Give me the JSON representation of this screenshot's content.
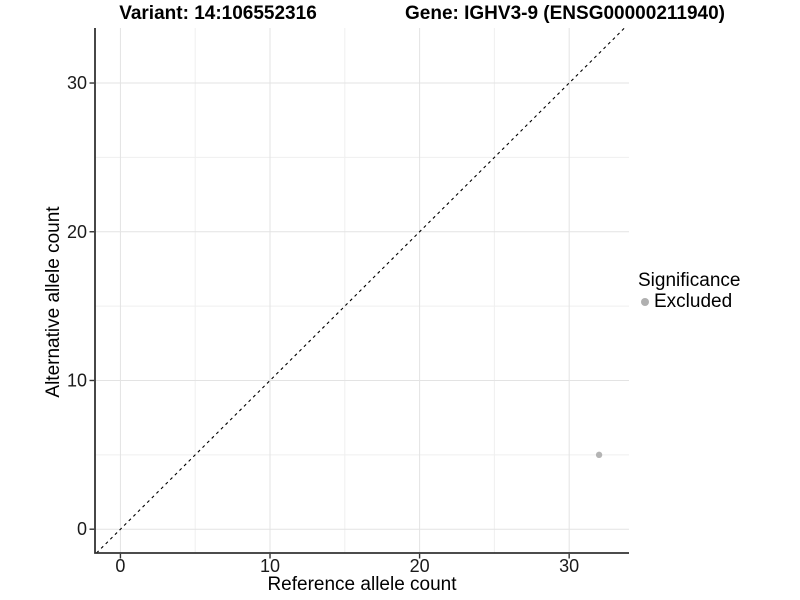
{
  "chart_data": {
    "type": "scatter",
    "title_left": "Variant: 14:106552316",
    "title_right": "Gene: IGHV3-9 (ENSG00000211940)",
    "xlabel": "Reference allele count",
    "ylabel": "Alternative allele count",
    "xticks": [
      0,
      10,
      20,
      30
    ],
    "yticks": [
      0,
      10,
      20,
      30
    ],
    "xlim": [
      -1.7,
      34
    ],
    "ylim": [
      -1.6,
      33.7
    ],
    "grid": {
      "major": true,
      "minor": true
    },
    "series": [
      {
        "name": "Excluded",
        "color": "#b4b4b4",
        "point_radius": 3.2,
        "points": [
          {
            "x": 32,
            "y": 5
          }
        ]
      }
    ],
    "reference_line": {
      "slope": 1,
      "intercept": 0,
      "style": "dashed",
      "color": "#000000"
    },
    "legend": {
      "title": "Significance",
      "position": "right",
      "items": [
        {
          "label": "Excluded",
          "color": "#b0b0b0"
        }
      ]
    }
  },
  "style_colors": {
    "grid_major": "#e3e3e3",
    "grid_minor": "#efefef",
    "axis_line": "#333333",
    "tick_mark": "#333333",
    "tick_text": "#1a1a1a"
  }
}
